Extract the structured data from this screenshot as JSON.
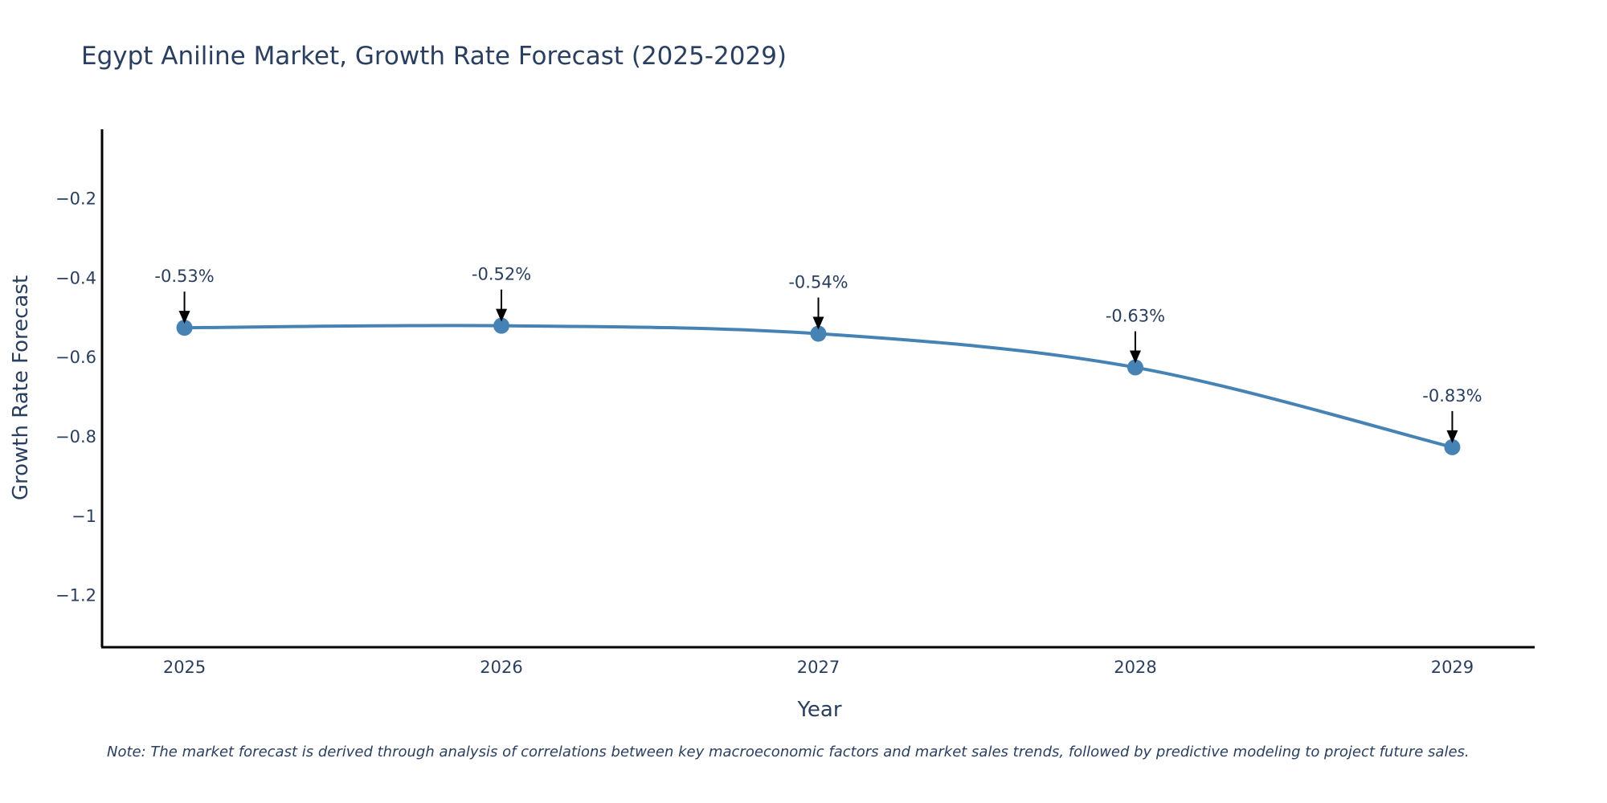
{
  "chart_data": {
    "type": "line",
    "title": "Egypt Aniline Market, Growth Rate Forecast (2025-2029)",
    "xlabel": "Year",
    "ylabel": "Growth Rate Forecast",
    "categories": [
      "2025",
      "2026",
      "2027",
      "2028",
      "2029"
    ],
    "series": [
      {
        "name": "Growth Rate Forecast",
        "values": [
          -0.525,
          -0.52,
          -0.54,
          -0.625,
          -0.826
        ],
        "labels": [
          "-0.53%",
          "-0.52%",
          "-0.54%",
          "-0.63%",
          "-0.83%"
        ]
      }
    ],
    "yticks": [
      -0.2,
      -0.4,
      -0.6,
      -0.8,
      -1,
      -1.2
    ],
    "ytick_labels": [
      "−0.2",
      "−0.4",
      "−0.6",
      "−0.8",
      "−1",
      "−1.2"
    ],
    "ylim": [
      -1.33,
      -0.025
    ],
    "xlim": [
      -0.26,
      4.26
    ],
    "grid": false,
    "line_color": "#4682b4",
    "marker_color": "#4682b4",
    "arrow_color": "#000000",
    "note": "Note: The market forecast is derived through analysis of correlations between key macroeconomic factors and market sales trends, followed by predictive modeling to project future sales."
  }
}
